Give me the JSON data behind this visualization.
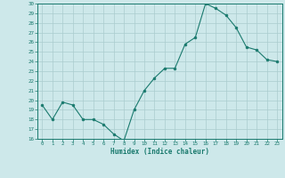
{
  "x": [
    0,
    1,
    2,
    3,
    4,
    5,
    6,
    7,
    8,
    9,
    10,
    11,
    12,
    13,
    14,
    15,
    16,
    17,
    18,
    19,
    20,
    21,
    22,
    23
  ],
  "y": [
    19.5,
    18.0,
    19.8,
    19.5,
    18.0,
    18.0,
    17.5,
    16.5,
    15.8,
    19.0,
    21.0,
    22.3,
    23.3,
    23.3,
    25.8,
    26.5,
    30.0,
    29.5,
    28.8,
    27.5,
    25.5,
    25.2,
    24.2,
    24.0
  ],
  "xlabel": "Humidex (Indice chaleur)",
  "xlim": [
    -0.5,
    23.5
  ],
  "ylim": [
    16,
    30
  ],
  "yticks": [
    16,
    17,
    18,
    19,
    20,
    21,
    22,
    23,
    24,
    25,
    26,
    27,
    28,
    29,
    30
  ],
  "xticks": [
    0,
    1,
    2,
    3,
    4,
    5,
    6,
    7,
    8,
    9,
    10,
    11,
    12,
    13,
    14,
    15,
    16,
    17,
    18,
    19,
    20,
    21,
    22,
    23
  ],
  "line_color": "#1a7a6e",
  "marker_color": "#1a7a6e",
  "bg_color": "#cde8ea",
  "grid_color": "#aaccce",
  "axis_color": "#1a7a6e",
  "tick_color": "#1a7a6e",
  "label_color": "#1a7a6e"
}
